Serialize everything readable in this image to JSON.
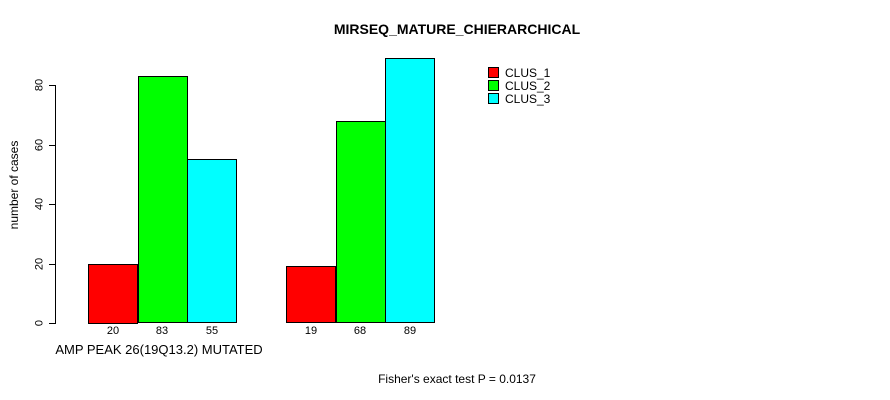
{
  "title": "MIRSEQ_MATURE_CHIERARCHICAL",
  "footer": "Fisher's exact test P = 0.0137",
  "chart_data": {
    "type": "bar",
    "title": "MIRSEQ_MATURE_CHIERARCHICAL",
    "xlabel": "AMP PEAK 26(19Q13.2) MUTATED",
    "ylabel": "number of cases",
    "yticks": [
      0,
      20,
      40,
      60,
      80
    ],
    "ylim": [
      0,
      89
    ],
    "grid": false,
    "legend_position": "top-right",
    "group_count": 2,
    "series": [
      {
        "name": "CLUS_1",
        "color": "#FF0000",
        "values": [
          20,
          19
        ]
      },
      {
        "name": "CLUS_2",
        "color": "#00FF00",
        "values": [
          83,
          68
        ]
      },
      {
        "name": "CLUS_3",
        "color": "#00FFFF",
        "values": [
          55,
          89
        ]
      }
    ],
    "bar_value_labels": [
      [
        20,
        83,
        55
      ],
      [
        19,
        68,
        89
      ]
    ],
    "colors": {
      "background": "#FFFFFF",
      "axis": "#000000",
      "text": "#000000",
      "bar_border": "#000000"
    }
  }
}
